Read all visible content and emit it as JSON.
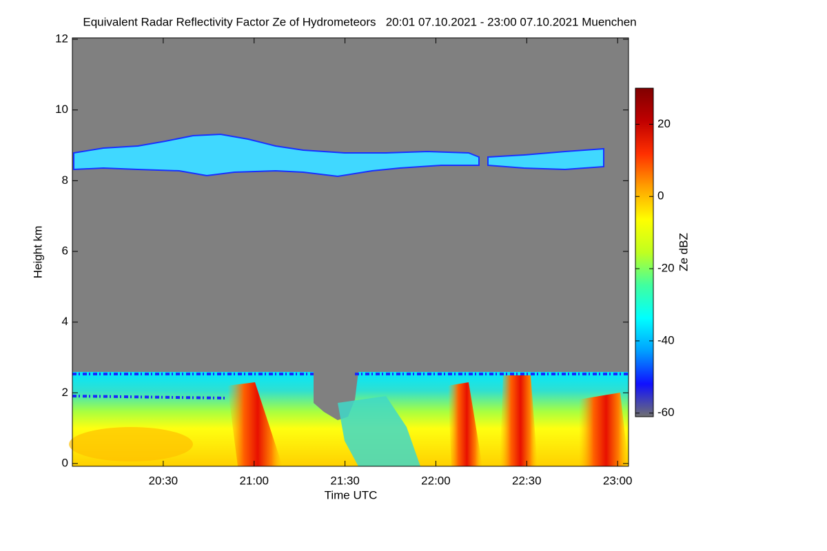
{
  "chart_data": {
    "type": "heatmap",
    "title": "Equivalent Radar Reflectivity Factor Ze of Hydrometeors   20:01 07.10.2021 - 23:00 07.10.2021 Muenchen",
    "xlabel": "Time UTC",
    "ylabel": "Height km",
    "xlim": [
      20.0,
      23.06
    ],
    "xticks": [
      {
        "value": 20.5,
        "label": "20:30"
      },
      {
        "value": 21,
        "label": "21:00"
      },
      {
        "value": 21.5,
        "label": "21:30"
      },
      {
        "value": 22,
        "label": "22:00"
      },
      {
        "value": 22.5,
        "label": "22:30"
      },
      {
        "value": 23,
        "label": "23:00"
      }
    ],
    "ylim": [
      0,
      12
    ],
    "yticks": [
      0,
      2,
      4,
      6,
      8,
      10,
      12
    ],
    "colorbar_label": "Ze dBZ",
    "zlim": [
      -61,
      30
    ],
    "zticks": [
      -60,
      -40,
      -20,
      0,
      20
    ],
    "colormap": [
      "#707070",
      "#1010ff",
      "#00a0ff",
      "#00ffff",
      "#40ffa0",
      "#c0ff20",
      "#ffff00",
      "#ffa000",
      "#ff3000",
      "#c00000",
      "#800000"
    ]
  }
}
